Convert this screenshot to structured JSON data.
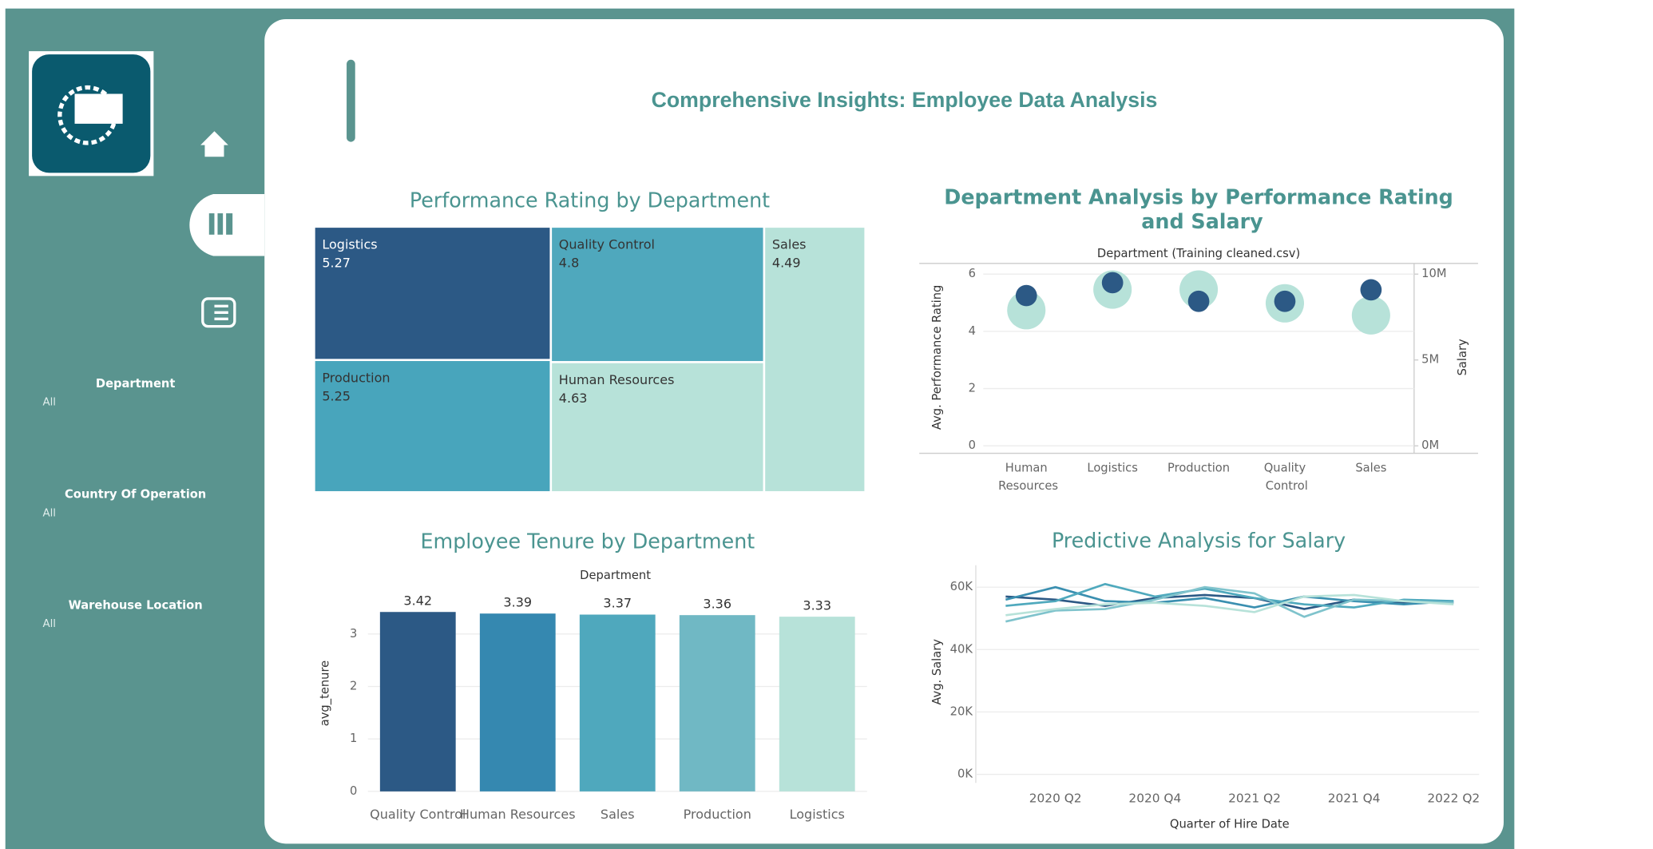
{
  "dashboard": {
    "title": "Comprehensive Insights: Employee Data Analysis",
    "filters": [
      {
        "label": "Department",
        "value": "All"
      },
      {
        "label": "Country Of Operation",
        "value": "All"
      },
      {
        "label": "Warehouse Location",
        "value": "All"
      }
    ]
  },
  "chart_data": [
    {
      "type": "treemap",
      "title": "Performance Rating by Department",
      "categories": [
        "Logistics",
        "Quality Control",
        "Sales",
        "Production",
        "Human Resources"
      ],
      "values": [
        5.27,
        4.8,
        4.49,
        5.25,
        4.63
      ],
      "colors": [
        "#2c5985",
        "#4fa8bd",
        "#b7e2d9",
        "#48a5bc",
        "#b7e2d9"
      ]
    },
    {
      "type": "dot",
      "title": "Department Analysis by Performance Rating and Salary",
      "subtitle": "Department (Training cleaned.csv)",
      "y_label": "Avg. Performance Rating",
      "y2_label": "Salary",
      "categories": [
        "Human Resources",
        "Logistics",
        "Production",
        "Quality Control",
        "Sales"
      ],
      "series": [
        {
          "color": "#b7e2d9",
          "axis": "y2",
          "values": [
            7900000,
            9100000,
            9100000,
            8300000,
            7600000
          ]
        },
        {
          "color": "#2c5985",
          "values": [
            5.25,
            5.7,
            5.05,
            5.05,
            5.45
          ]
        }
      ],
      "ylim": [
        0,
        6
      ],
      "yticks": [
        0,
        2,
        4,
        6
      ],
      "y2lim": [
        0,
        10000000
      ],
      "y2ticks": [
        {
          "value": 0,
          "label": "0M"
        },
        {
          "value": 5000000,
          "label": "5M"
        },
        {
          "value": 10000000,
          "label": "10M"
        }
      ]
    },
    {
      "type": "bar",
      "title": "Employee Tenure by Department",
      "x_label": "Department",
      "y_label": "avg_tenure",
      "categories": [
        "Quality Control",
        "Human Resources",
        "Sales",
        "Production",
        "Logistics"
      ],
      "values": [
        3.42,
        3.39,
        3.37,
        3.36,
        3.33
      ],
      "colors": [
        "#2c5985",
        "#3588b0",
        "#4fa8bd",
        "#70b8c4",
        "#b7e2d9"
      ],
      "ylim": [
        0,
        3.7
      ],
      "yticks": [
        0,
        1,
        2,
        3
      ],
      "grid": true
    },
    {
      "type": "line",
      "title": "Predictive Analysis for Salary",
      "x_label": "Quarter of Hire Date",
      "y_label": "Avg. Salary",
      "categories": [
        null,
        "2020 Q2",
        null,
        "2020 Q4",
        null,
        "2021 Q2",
        null,
        "2021 Q4",
        null,
        "2022 Q2"
      ],
      "series": [
        {
          "color": "#2c5985",
          "values": [
            57000,
            56000,
            54000,
            56500,
            57500,
            56500,
            53000,
            56000,
            55000,
            55000
          ]
        },
        {
          "color": "#3a8fb0",
          "values": [
            56000,
            60000,
            55500,
            55000,
            56500,
            53500,
            57000,
            55500,
            54500,
            55500
          ]
        },
        {
          "color": "#4fa9bd",
          "values": [
            54000,
            55500,
            61000,
            57000,
            59500,
            56500,
            54500,
            53500,
            56000,
            55500
          ]
        },
        {
          "color": "#7fc3cc",
          "values": [
            49000,
            52500,
            53000,
            56000,
            60000,
            58000,
            50500,
            56000,
            55500,
            55000
          ]
        },
        {
          "color": "#b7e2d9",
          "values": [
            51000,
            53000,
            54500,
            55000,
            54000,
            52000,
            57000,
            57500,
            55500,
            54500
          ]
        }
      ],
      "ylim": [
        0,
        67000
      ],
      "yticks": [
        {
          "value": 0,
          "label": "0K"
        },
        {
          "value": 20000,
          "label": "20K"
        },
        {
          "value": 40000,
          "label": "40K"
        },
        {
          "value": 60000,
          "label": "60K"
        }
      ],
      "grid": true
    }
  ]
}
